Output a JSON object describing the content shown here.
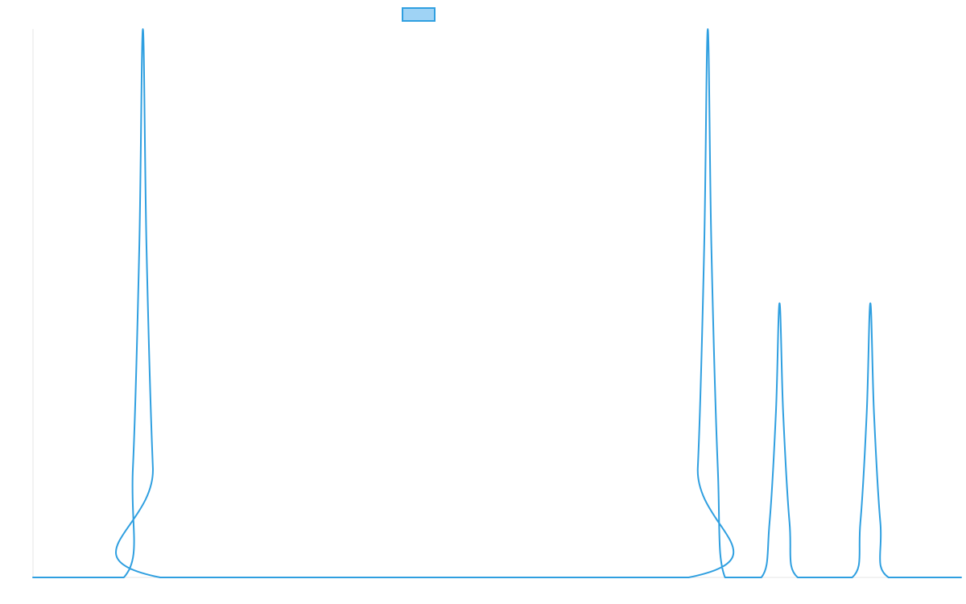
{
  "colors": {
    "series_line": "#2f9fe0",
    "legend_fill": "#9fd3f5",
    "legend_stroke": "#2f9fe0",
    "axis": "#e6e6e6",
    "background": "#ffffff"
  },
  "chart_data": {
    "type": "line",
    "title": "",
    "xlabel": "",
    "ylabel": "",
    "grid": false,
    "legend_position": "top-center",
    "xlim": [
      0,
      1022
    ],
    "ylim": [
      0,
      1
    ],
    "series": [
      {
        "label": "",
        "points": [
          [
            0,
            0
          ],
          [
            100,
            0
          ],
          [
            110,
            0.2
          ],
          [
            117,
            0.6
          ],
          [
            121,
            1.0
          ],
          [
            125,
            0.6
          ],
          [
            132,
            0.2
          ],
          [
            140,
            0
          ],
          [
            722,
            0
          ],
          [
            732,
            0.2
          ],
          [
            739,
            0.6
          ],
          [
            743,
            1.0
          ],
          [
            747,
            0.6
          ],
          [
            754,
            0.2
          ],
          [
            762,
            0
          ],
          [
            802,
            0
          ],
          [
            811,
            0.1
          ],
          [
            818,
            0.3
          ],
          [
            822,
            0.5
          ],
          [
            826,
            0.3
          ],
          [
            833,
            0.1
          ],
          [
            842,
            0
          ],
          [
            902,
            0
          ],
          [
            911,
            0.1
          ],
          [
            918,
            0.3
          ],
          [
            922,
            0.5
          ],
          [
            926,
            0.3
          ],
          [
            933,
            0.1
          ],
          [
            942,
            0
          ],
          [
            1022,
            0
          ]
        ]
      }
    ]
  }
}
